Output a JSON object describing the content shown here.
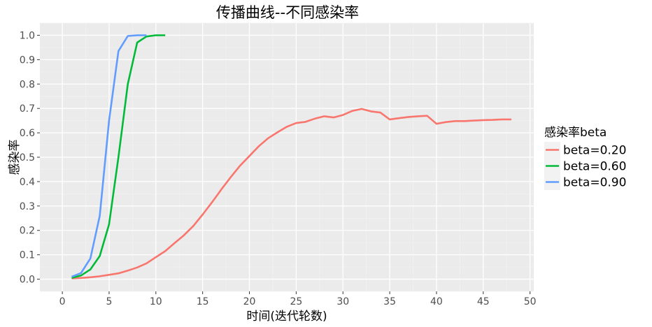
{
  "chart_data": {
    "type": "line",
    "title": "传播曲线--不同感染率",
    "xlabel": "时间(迭代轮数)",
    "ylabel": "感染率",
    "xlim": [
      -2.4,
      50.4
    ],
    "ylim": [
      -0.05,
      1.05
    ],
    "x_ticks": [
      0,
      5,
      10,
      15,
      20,
      25,
      30,
      35,
      40,
      45,
      50
    ],
    "x_tick_labels": [
      "0",
      "5",
      "10",
      "15",
      "20",
      "25",
      "30",
      "35",
      "40",
      "45",
      "50"
    ],
    "y_ticks": [
      0.0,
      0.1,
      0.2,
      0.3,
      0.4,
      0.5,
      0.6,
      0.7,
      0.8,
      0.9,
      1.0
    ],
    "y_tick_labels": [
      "0.0",
      "0.1",
      "0.2",
      "0.3",
      "0.4",
      "0.5",
      "0.6",
      "0.7",
      "0.8",
      "0.9",
      "1.0"
    ],
    "grid": true,
    "background": "#ebebeb",
    "legend": {
      "title": "感染率beta",
      "position": "right"
    },
    "series": [
      {
        "name": "beta=0.20",
        "color": "#f8766d",
        "x": [
          1,
          2,
          3,
          4,
          5,
          6,
          7,
          8,
          9,
          10,
          11,
          12,
          13,
          14,
          15,
          16,
          17,
          18,
          19,
          20,
          21,
          22,
          23,
          24,
          25,
          26,
          27,
          28,
          29,
          30,
          31,
          32,
          33,
          34,
          35,
          36,
          37,
          38,
          39,
          40,
          41,
          42,
          43,
          44,
          45,
          46,
          47,
          48
        ],
        "y": [
          0.003,
          0.005,
          0.008,
          0.012,
          0.018,
          0.024,
          0.035,
          0.048,
          0.065,
          0.09,
          0.115,
          0.148,
          0.18,
          0.218,
          0.265,
          0.315,
          0.368,
          0.418,
          0.465,
          0.505,
          0.545,
          0.578,
          0.602,
          0.625,
          0.64,
          0.645,
          0.658,
          0.668,
          0.663,
          0.673,
          0.69,
          0.698,
          0.688,
          0.683,
          0.655,
          0.66,
          0.665,
          0.668,
          0.67,
          0.637,
          0.644,
          0.648,
          0.648,
          0.65,
          0.652,
          0.653,
          0.655,
          0.655
        ]
      },
      {
        "name": "beta=0.60",
        "color": "#00ba38",
        "x": [
          1,
          2,
          3,
          4,
          5,
          6,
          7,
          8,
          9,
          10,
          11
        ],
        "y": [
          0.005,
          0.015,
          0.04,
          0.095,
          0.225,
          0.5,
          0.8,
          0.97,
          0.995,
          1.0,
          1.0
        ]
      },
      {
        "name": "beta=0.90",
        "color": "#619cff",
        "x": [
          1,
          2,
          3,
          4,
          5,
          6,
          7,
          8,
          9
        ],
        "y": [
          0.01,
          0.025,
          0.085,
          0.26,
          0.65,
          0.935,
          0.997,
          1.0,
          1.0
        ]
      }
    ]
  }
}
